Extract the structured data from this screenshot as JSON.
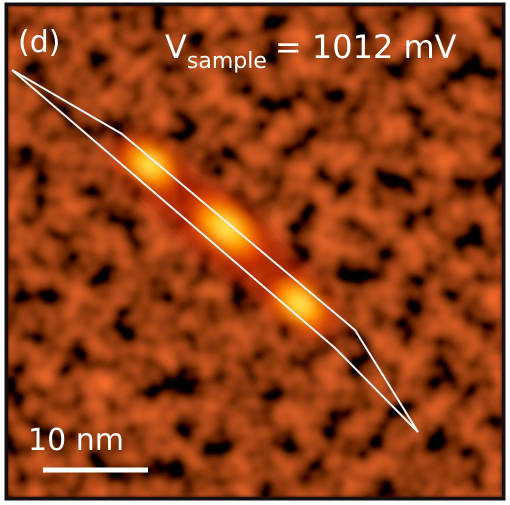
{
  "panel_label": "(d)",
  "voltage_label": {
    "symbol": "V",
    "subscript": "sample",
    "value": "= 1012 mV"
  },
  "scale_bar": {
    "label": "10 nm"
  }
}
